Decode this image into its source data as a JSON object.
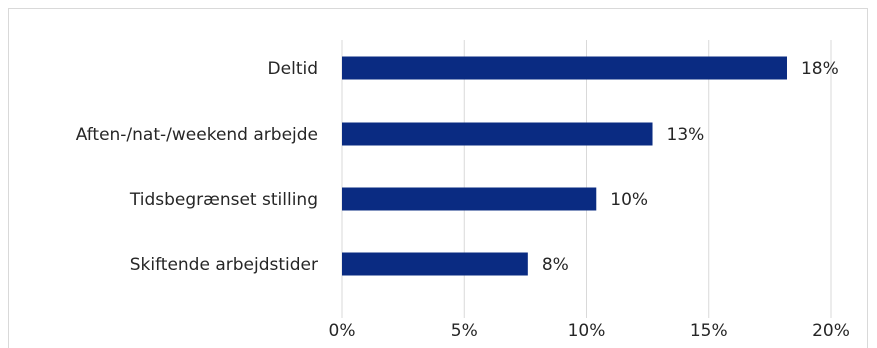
{
  "chart_data": {
    "type": "bar",
    "orientation": "horizontal",
    "categories": [
      "Deltid",
      "Aften-/nat-/weekend arbejde",
      "Tidsbegrænset stilling",
      "Skiftende arbejdstider"
    ],
    "values": [
      18.2,
      12.7,
      10.4,
      7.6
    ],
    "value_labels": [
      "18%",
      "13%",
      "10%",
      "8%"
    ],
    "xlim": [
      0,
      20
    ],
    "xticks": [
      0,
      5,
      10,
      15,
      20
    ],
    "xtick_labels": [
      "0%",
      "5%",
      "10%",
      "15%",
      "20%"
    ],
    "grid": "vertical",
    "colors": {
      "bar": "#0a2b82",
      "grid": "#d9d9d9",
      "text": "#262626"
    }
  }
}
